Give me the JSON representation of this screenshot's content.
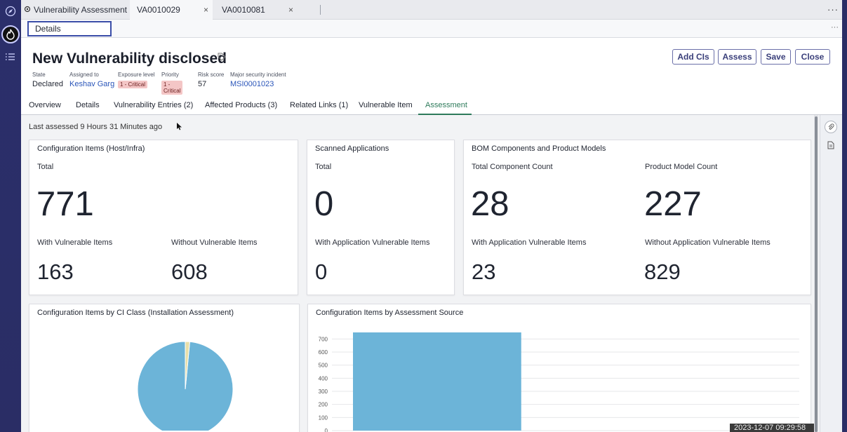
{
  "rail": {
    "icons": [
      "compass-icon",
      "logo-icon",
      "list-icon"
    ]
  },
  "topbar": {
    "tabs": [
      {
        "label": "Vulnerability Assessment",
        "icon": "gear-icon"
      },
      {
        "label": "VA0010029",
        "close": "×"
      },
      {
        "label": "VA0010081",
        "close": "×"
      }
    ],
    "more": "···"
  },
  "strip": {
    "details_label": "Details",
    "more": "···"
  },
  "header": {
    "title": "New Vulnerability disclosed",
    "buttons": {
      "add_cis": "Add CIs",
      "assess": "Assess",
      "save": "Save",
      "close": "Close"
    },
    "fields": {
      "state": {
        "label": "State",
        "value": "Declared"
      },
      "assigned_to": {
        "label": "Assigned to",
        "value": "Keshav Garg"
      },
      "exposure": {
        "label": "Exposure level",
        "value": "1 - Critical"
      },
      "priority": {
        "label": "Priority",
        "value": "1 - Critical"
      },
      "risk_score": {
        "label": "Risk score",
        "value": "57"
      },
      "incident": {
        "label": "Major security incident",
        "value": "MSI0001023"
      }
    },
    "tabs": [
      "Overview",
      "Details",
      "Vulnerability Entries (2)",
      "Affected Products (3)",
      "Related Links (1)",
      "Vulnerable Item",
      "Assessment"
    ],
    "active_tab": "Assessment"
  },
  "assessment": {
    "last_assessed": "Last assessed 9 Hours 31 Minutes ago",
    "ci_card": {
      "title": "Configuration Items (Host/Infra)",
      "total_label": "Total",
      "total": "771",
      "with_label": "With Vulnerable Items",
      "with": "163",
      "without_label": "Without Vulnerable Items",
      "without": "608"
    },
    "apps_card": {
      "title": "Scanned Applications",
      "total_label": "Total",
      "total": "0",
      "with_label": "With Application Vulnerable Items",
      "with": "0"
    },
    "bom_card": {
      "title": "BOM Components and Product Models",
      "component_label": "Total Component Count",
      "component": "28",
      "model_label": "Product Model Count",
      "model": "227",
      "with_label": "With Application Vulnerable Items",
      "with": "23",
      "without_label": "Without Application Vulnerable Items",
      "without": "829"
    },
    "pie_title": "Configuration Items by CI Class (Installation Assessment)",
    "bar_title": "Configuration Items by Assessment Source"
  },
  "colors": {
    "accent": "#2e7b5b",
    "pie_main": "#6cb4d8",
    "pie_small": "#e8dfa8",
    "bar": "#6cb4d8",
    "rail": "#2b2f6b"
  },
  "chart_data": [
    {
      "type": "pie",
      "title": "Configuration Items by CI Class (Installation Assessment)",
      "values": [
        98.5,
        1.5
      ]
    },
    {
      "type": "bar",
      "title": "Configuration Items by Assessment Source",
      "values": [
        750,
        0
      ],
      "ylim": [
        0,
        750
      ],
      "yticks": [
        0,
        100,
        200,
        300,
        400,
        500,
        600,
        700
      ],
      "grid": true
    }
  ],
  "timestamp": "2023-12-07 09:29:58"
}
